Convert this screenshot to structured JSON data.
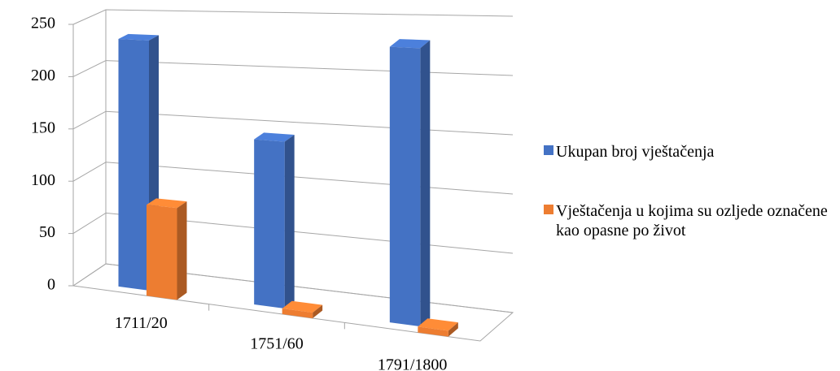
{
  "chart_data": {
    "type": "bar3d",
    "categories": [
      "1711/20",
      "1751/60",
      "1791/1800"
    ],
    "series": [
      {
        "name": "Ukupan broj vještačenja",
        "color": "#4472c4",
        "values": [
          235,
          150,
          240
        ]
      },
      {
        "name": "Vještačenja u kojima su ozljede označene kao opasne po život",
        "color": "#ed7d31",
        "values": [
          85,
          5,
          5
        ]
      }
    ],
    "ylim": [
      0,
      250
    ],
    "yticks": [
      0,
      50,
      100,
      150,
      200,
      250
    ],
    "grid": true,
    "legend": "right"
  }
}
